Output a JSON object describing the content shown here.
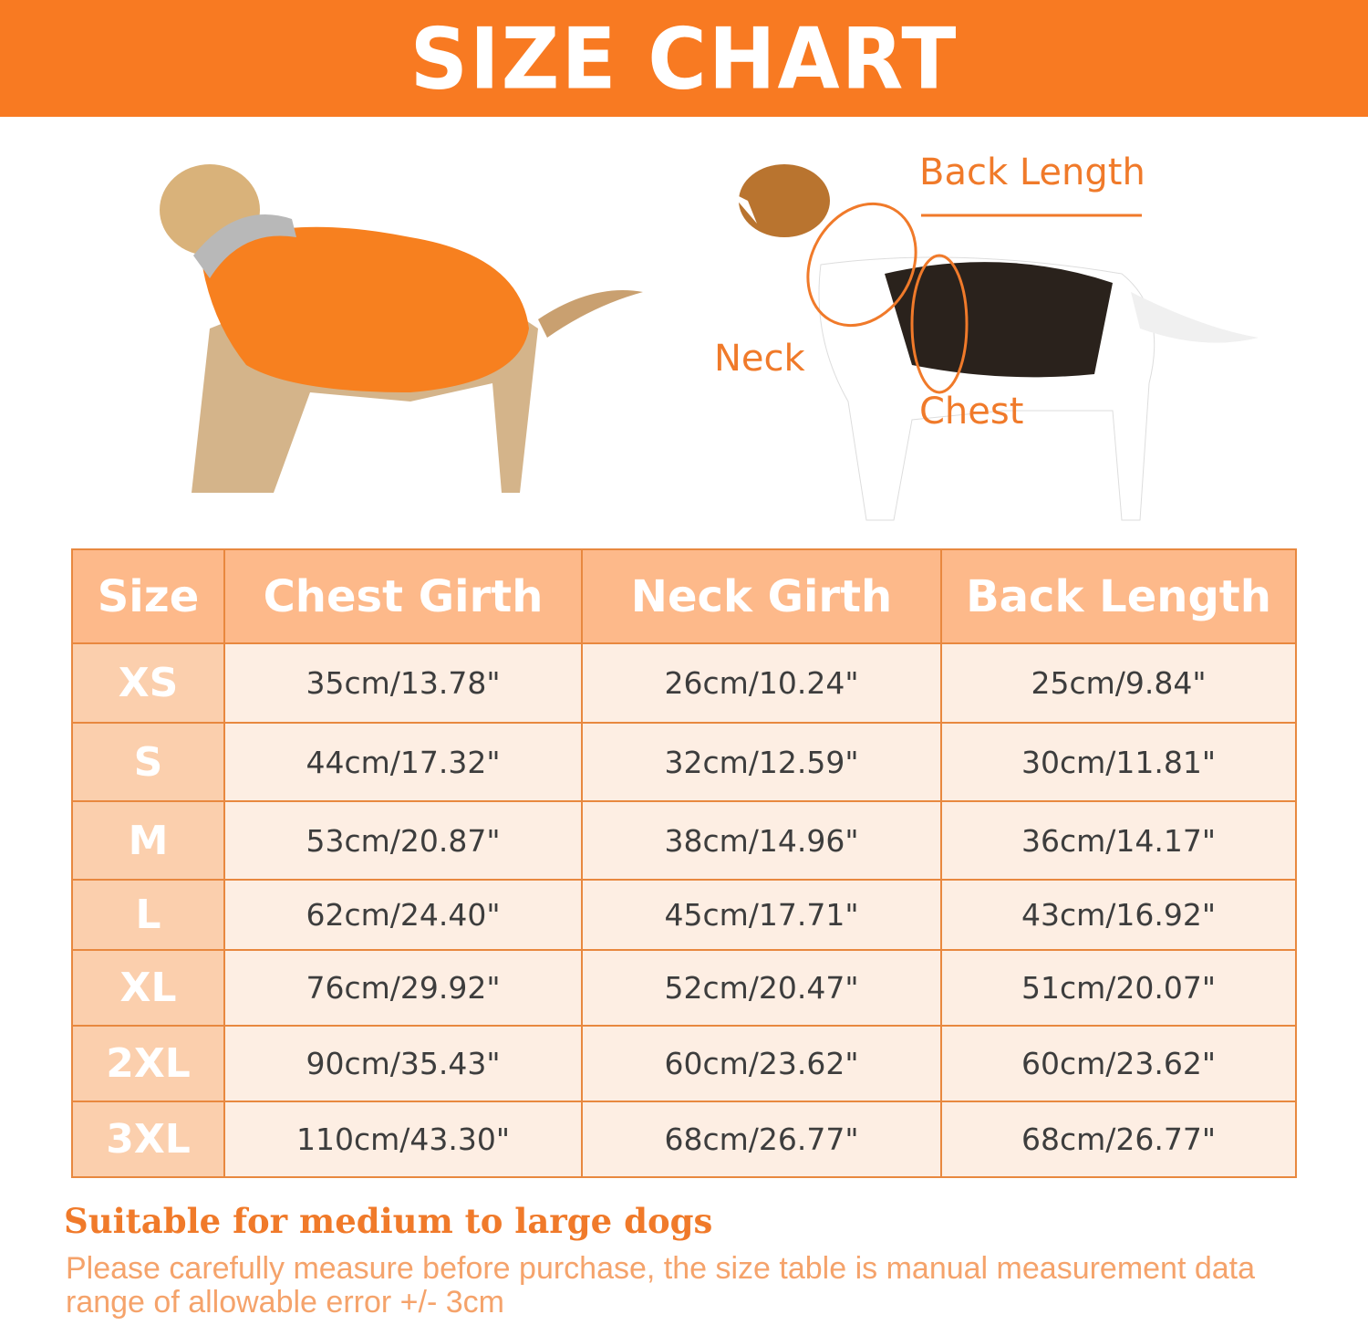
{
  "title": "SIZE CHART",
  "diagram_labels": {
    "back_length": "Back Length",
    "neck": "Neck",
    "chest": "Chest"
  },
  "colors": {
    "banner": "#f87a22",
    "header": "#fdb98a",
    "size_col": "#fbcfad",
    "cell": "#fdeee3",
    "border": "#e8883f",
    "accent": "#f07a2a"
  },
  "table": {
    "headers": [
      "Size",
      "Chest Girth",
      "Neck Girth",
      "Back Length"
    ],
    "rows": [
      [
        "XS",
        "35cm/13.78\"",
        "26cm/10.24\"",
        "25cm/9.84\""
      ],
      [
        "S",
        "44cm/17.32\"",
        "32cm/12.59\"",
        "30cm/11.81\""
      ],
      [
        "M",
        "53cm/20.87\"",
        "38cm/14.96\"",
        "36cm/14.17\""
      ],
      [
        "L",
        "62cm/24.40\"",
        "45cm/17.71\"",
        "43cm/16.92\""
      ],
      [
        "XL",
        "76cm/29.92\"",
        "52cm/20.47\"",
        "51cm/20.07\""
      ],
      [
        "2XL",
        "90cm/35.43\"",
        "60cm/23.62\"",
        "60cm/23.62\""
      ],
      [
        "3XL",
        "110cm/43.30\"",
        "68cm/26.77\"",
        "68cm/26.77\""
      ]
    ]
  },
  "note": {
    "heading": "Suitable for medium to large dogs",
    "text": "Please carefully measure before purchase, the size table is manual measurement data range of allowable error +/- 3cm"
  }
}
